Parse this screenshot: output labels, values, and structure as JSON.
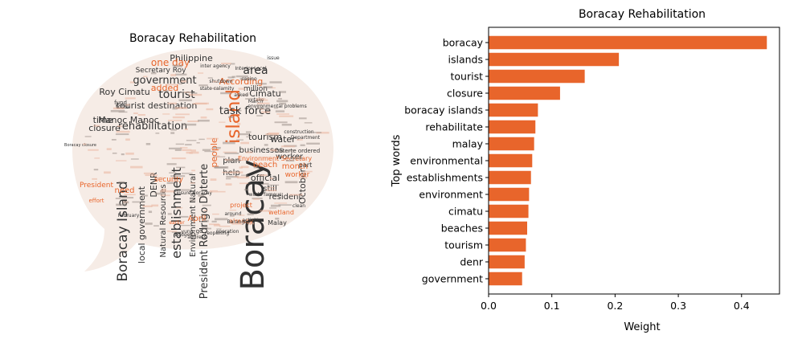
{
  "chart_data": [
    {
      "type": "wordcloud",
      "title": "Boracay Rehabilitation",
      "colors": {
        "dark": "#333333",
        "accent": "#e8652b",
        "light": "#eba582"
      },
      "words": [
        {
          "text": "Boracay",
          "tone": "dark"
        },
        {
          "text": "island",
          "tone": "accent"
        },
        {
          "text": "Boracay Island",
          "tone": "dark"
        },
        {
          "text": "establishment",
          "tone": "dark"
        },
        {
          "text": "government",
          "tone": "dark"
        },
        {
          "text": "tourist",
          "tone": "dark"
        },
        {
          "text": "rehabilitation",
          "tone": "dark"
        },
        {
          "text": "task force",
          "tone": "dark"
        },
        {
          "text": "President Rodrigo Duterte",
          "tone": "dark"
        },
        {
          "text": "area",
          "tone": "dark"
        },
        {
          "text": "Philippine",
          "tone": "dark"
        },
        {
          "text": "one day",
          "tone": "accent"
        },
        {
          "text": "Secretary Roy",
          "tone": "dark"
        },
        {
          "text": "Roy Cimatu",
          "tone": "dark"
        },
        {
          "text": "added",
          "tone": "accent"
        },
        {
          "text": "tourist destination",
          "tone": "dark"
        },
        {
          "text": "Manoc Manoc",
          "tone": "dark"
        },
        {
          "text": "closure",
          "tone": "dark"
        },
        {
          "text": "time",
          "tone": "dark"
        },
        {
          "text": "According",
          "tone": "accent"
        },
        {
          "text": "Cimatu",
          "tone": "dark"
        },
        {
          "text": "tourism",
          "tone": "dark"
        },
        {
          "text": "water",
          "tone": "dark"
        },
        {
          "text": "businesses",
          "tone": "dark"
        },
        {
          "text": "worker",
          "tone": "dark"
        },
        {
          "text": "month",
          "tone": "accent"
        },
        {
          "text": "beach",
          "tone": "accent"
        },
        {
          "text": "official",
          "tone": "dark"
        },
        {
          "text": "still",
          "tone": "dark"
        },
        {
          "text": "resident",
          "tone": "dark"
        },
        {
          "text": "October",
          "tone": "dark"
        },
        {
          "text": "people",
          "tone": "accent"
        },
        {
          "text": "plan",
          "tone": "dark"
        },
        {
          "text": "help",
          "tone": "dark"
        },
        {
          "text": "April",
          "tone": "accent"
        },
        {
          "text": "need",
          "tone": "accent"
        },
        {
          "text": "local government",
          "tone": "dark"
        },
        {
          "text": "Natural Resources",
          "tone": "dark"
        },
        {
          "text": "Environment Natural",
          "tone": "dark"
        },
        {
          "text": "DENR",
          "tone": "dark"
        },
        {
          "text": "security",
          "tone": "accent"
        },
        {
          "text": "wetland",
          "tone": "accent"
        },
        {
          "text": "Environment Secretary",
          "tone": "accent"
        },
        {
          "text": "project",
          "tone": "accent"
        },
        {
          "text": "President",
          "tone": "accent"
        },
        {
          "text": "Malay",
          "tone": "dark"
        },
        {
          "text": "million",
          "tone": "dark"
        },
        {
          "text": "already",
          "tone": "accent"
        },
        {
          "text": "worker",
          "tone": "accent"
        },
        {
          "text": "part",
          "tone": "dark"
        },
        {
          "text": "Duterte ordered",
          "tone": "dark"
        },
        {
          "text": "environmental problems",
          "tone": "dark"
        },
        {
          "text": "closure Boracay",
          "tone": "dark"
        },
        {
          "text": "Interior Local",
          "tone": "dark"
        },
        {
          "text": "fund",
          "tone": "dark"
        },
        {
          "text": "total",
          "tone": "dark"
        },
        {
          "text": "Department",
          "tone": "dark"
        },
        {
          "text": "reopening",
          "tone": "dark"
        },
        {
          "text": "Barangay",
          "tone": "dark"
        },
        {
          "text": "budget",
          "tone": "dark"
        },
        {
          "text": "address",
          "tone": "dark"
        },
        {
          "text": "go",
          "tone": "dark"
        },
        {
          "text": "operation",
          "tone": "dark"
        },
        {
          "text": "earlier",
          "tone": "accent"
        },
        {
          "text": "state calamity",
          "tone": "dark"
        },
        {
          "text": "inter agency",
          "tone": "dark"
        },
        {
          "text": "shutdown",
          "tone": "dark"
        },
        {
          "text": "March",
          "tone": "dark"
        },
        {
          "text": "issue",
          "tone": "dark"
        },
        {
          "text": "casino",
          "tone": "dark"
        },
        {
          "text": "Boracay closure",
          "tone": "dark"
        },
        {
          "text": "effort",
          "tone": "accent"
        },
        {
          "text": "world famous",
          "tone": "dark"
        },
        {
          "text": "February",
          "tone": "dark"
        },
        {
          "text": "clean",
          "tone": "dark"
        },
        {
          "text": "around",
          "tone": "dark"
        },
        {
          "text": "activities",
          "tone": "dark"
        },
        {
          "text": "construction",
          "tone": "dark"
        },
        {
          "text": "asked",
          "tone": "dark"
        },
        {
          "text": "take",
          "tone": "dark"
        },
        {
          "text": "yung",
          "tone": "dark"
        }
      ]
    },
    {
      "type": "bar",
      "orientation": "horizontal",
      "title": "Boracay Rehabilitation",
      "xlabel": "Weight",
      "ylabel": "Top words",
      "xlim": [
        0,
        0.46
      ],
      "xticks": [
        0.0,
        0.1,
        0.2,
        0.3,
        0.4
      ],
      "xtick_labels": [
        "0.0",
        "0.1",
        "0.2",
        "0.3",
        "0.4"
      ],
      "grid": false,
      "bar_color": "#e8652b",
      "categories": [
        "boracay",
        "islands",
        "tourist",
        "closure",
        "boracay islands",
        "rehabilitate",
        "malay",
        "environmental",
        "establishments",
        "environment",
        "cimatu",
        "beaches",
        "tourism",
        "denr",
        "government"
      ],
      "values": [
        0.44,
        0.206,
        0.152,
        0.113,
        0.078,
        0.074,
        0.072,
        0.069,
        0.067,
        0.064,
        0.063,
        0.061,
        0.059,
        0.057,
        0.053
      ]
    }
  ]
}
